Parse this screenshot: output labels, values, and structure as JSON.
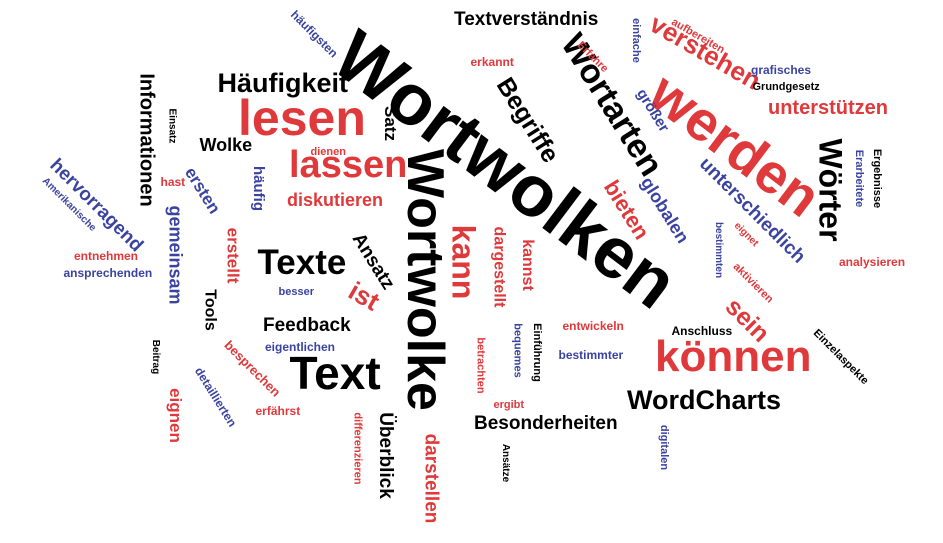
{
  "colors": {
    "black": "#000000",
    "red": "#e0393b",
    "blue": "#3a43a0"
  },
  "words": [
    {
      "id": "w1",
      "text": "Wortwolken",
      "color": "black"
    },
    {
      "id": "w2",
      "text": "Wortwolke",
      "color": "black"
    },
    {
      "id": "w3",
      "text": "werden",
      "color": "red"
    },
    {
      "id": "w4",
      "text": "lesen",
      "color": "red"
    },
    {
      "id": "w5",
      "text": "können",
      "color": "red"
    },
    {
      "id": "w6",
      "text": "Text",
      "color": "black"
    },
    {
      "id": "w7",
      "text": "Wortarten",
      "color": "black"
    },
    {
      "id": "w8",
      "text": "lassen",
      "color": "red"
    },
    {
      "id": "w9",
      "text": "Wörter",
      "color": "black"
    },
    {
      "id": "w10",
      "text": "kann",
      "color": "red"
    },
    {
      "id": "w11",
      "text": "Texte",
      "color": "black"
    },
    {
      "id": "w12",
      "text": "Häufigkeit",
      "color": "black"
    },
    {
      "id": "w13",
      "text": "verstehen",
      "color": "red"
    },
    {
      "id": "w14",
      "text": "Begriffe",
      "color": "black"
    },
    {
      "id": "w15",
      "text": "WordCharts",
      "color": "black"
    },
    {
      "id": "w16",
      "text": "Informationen",
      "color": "black"
    },
    {
      "id": "w17",
      "text": "unterschiedlich",
      "color": "blue"
    },
    {
      "id": "w18",
      "text": "hervorragend",
      "color": "blue"
    },
    {
      "id": "w19",
      "text": "bieten",
      "color": "red"
    },
    {
      "id": "w20",
      "text": "globalen",
      "color": "blue"
    },
    {
      "id": "w21",
      "text": "sein",
      "color": "red"
    },
    {
      "id": "w22",
      "text": "ist",
      "color": "red"
    },
    {
      "id": "w23",
      "text": "darstellen",
      "color": "red"
    },
    {
      "id": "w24",
      "text": "Überblick",
      "color": "black"
    },
    {
      "id": "w25",
      "text": "Textverständnis",
      "color": "black"
    },
    {
      "id": "w26",
      "text": "unterstützen",
      "color": "red"
    },
    {
      "id": "w27",
      "text": "diskutieren",
      "color": "red"
    },
    {
      "id": "w28",
      "text": "Besonderheiten",
      "color": "black"
    },
    {
      "id": "w29",
      "text": "Feedback",
      "color": "black"
    },
    {
      "id": "w30",
      "text": "gemeinsam",
      "color": "blue"
    },
    {
      "id": "w31",
      "text": "dargestellt",
      "color": "red"
    },
    {
      "id": "w32",
      "text": "kannst",
      "color": "red"
    },
    {
      "id": "w33",
      "text": "Ansatz",
      "color": "black"
    },
    {
      "id": "w34",
      "text": "ersten",
      "color": "blue"
    },
    {
      "id": "w35",
      "text": "erstellt",
      "color": "red"
    },
    {
      "id": "w36",
      "text": "eignen",
      "color": "red"
    },
    {
      "id": "w37",
      "text": "Wolke",
      "color": "black"
    },
    {
      "id": "w38",
      "text": "Satz",
      "color": "black"
    },
    {
      "id": "w39",
      "text": "größer",
      "color": "blue"
    },
    {
      "id": "w40",
      "text": "häufig",
      "color": "blue"
    },
    {
      "id": "w41",
      "text": "Tools",
      "color": "black"
    },
    {
      "id": "w42",
      "text": "besprechen",
      "color": "red"
    },
    {
      "id": "w43",
      "text": "detaillierten",
      "color": "blue"
    },
    {
      "id": "w44",
      "text": "häufigsten",
      "color": "blue"
    },
    {
      "id": "w45",
      "text": "erkannt",
      "color": "red"
    },
    {
      "id": "w46",
      "text": "Erfahre",
      "color": "red"
    },
    {
      "id": "w47",
      "text": "einfache",
      "color": "blue"
    },
    {
      "id": "w48",
      "text": "aufbereiten",
      "color": "red"
    },
    {
      "id": "w49",
      "text": "grafisches",
      "color": "blue"
    },
    {
      "id": "w50",
      "text": "Grundgesetz",
      "color": "black"
    },
    {
      "id": "w51",
      "text": "Ergebnisse",
      "color": "black"
    },
    {
      "id": "w52",
      "text": "Erarbeitete",
      "color": "blue"
    },
    {
      "id": "w53",
      "text": "analysieren",
      "color": "red"
    },
    {
      "id": "w54",
      "text": "Einzelaspekte",
      "color": "black"
    },
    {
      "id": "w55",
      "text": "Anschluss",
      "color": "black"
    },
    {
      "id": "w56",
      "text": "entwickeln",
      "color": "red"
    },
    {
      "id": "w57",
      "text": "bestimmter",
      "color": "blue"
    },
    {
      "id": "w58",
      "text": "Einführung",
      "color": "black"
    },
    {
      "id": "w59",
      "text": "bequemes",
      "color": "blue"
    },
    {
      "id": "w60",
      "text": "betrachten",
      "color": "red"
    },
    {
      "id": "w61",
      "text": "ergibt",
      "color": "red"
    },
    {
      "id": "w62",
      "text": "Ansätze",
      "color": "black"
    },
    {
      "id": "w63",
      "text": "digitalen",
      "color": "blue"
    },
    {
      "id": "w64",
      "text": "differenzieren",
      "color": "red"
    },
    {
      "id": "w65",
      "text": "erfährst",
      "color": "red"
    },
    {
      "id": "w66",
      "text": "eigentlichen",
      "color": "blue"
    },
    {
      "id": "w67",
      "text": "besser",
      "color": "blue"
    },
    {
      "id": "w68",
      "text": "Beitrag",
      "color": "black"
    },
    {
      "id": "w69",
      "text": "entnehmen",
      "color": "red"
    },
    {
      "id": "w70",
      "text": "ansprechenden",
      "color": "blue"
    },
    {
      "id": "w71",
      "text": "Amerikanische",
      "color": "blue"
    },
    {
      "id": "w72",
      "text": "hast",
      "color": "red"
    },
    {
      "id": "w73",
      "text": "dienen",
      "color": "red"
    },
    {
      "id": "w74",
      "text": "Einsatz",
      "color": "black"
    },
    {
      "id": "w75",
      "text": "bestimmten",
      "color": "blue"
    },
    {
      "id": "w76",
      "text": "eignet",
      "color": "red"
    },
    {
      "id": "w77",
      "text": "aktivieren",
      "color": "red"
    }
  ]
}
